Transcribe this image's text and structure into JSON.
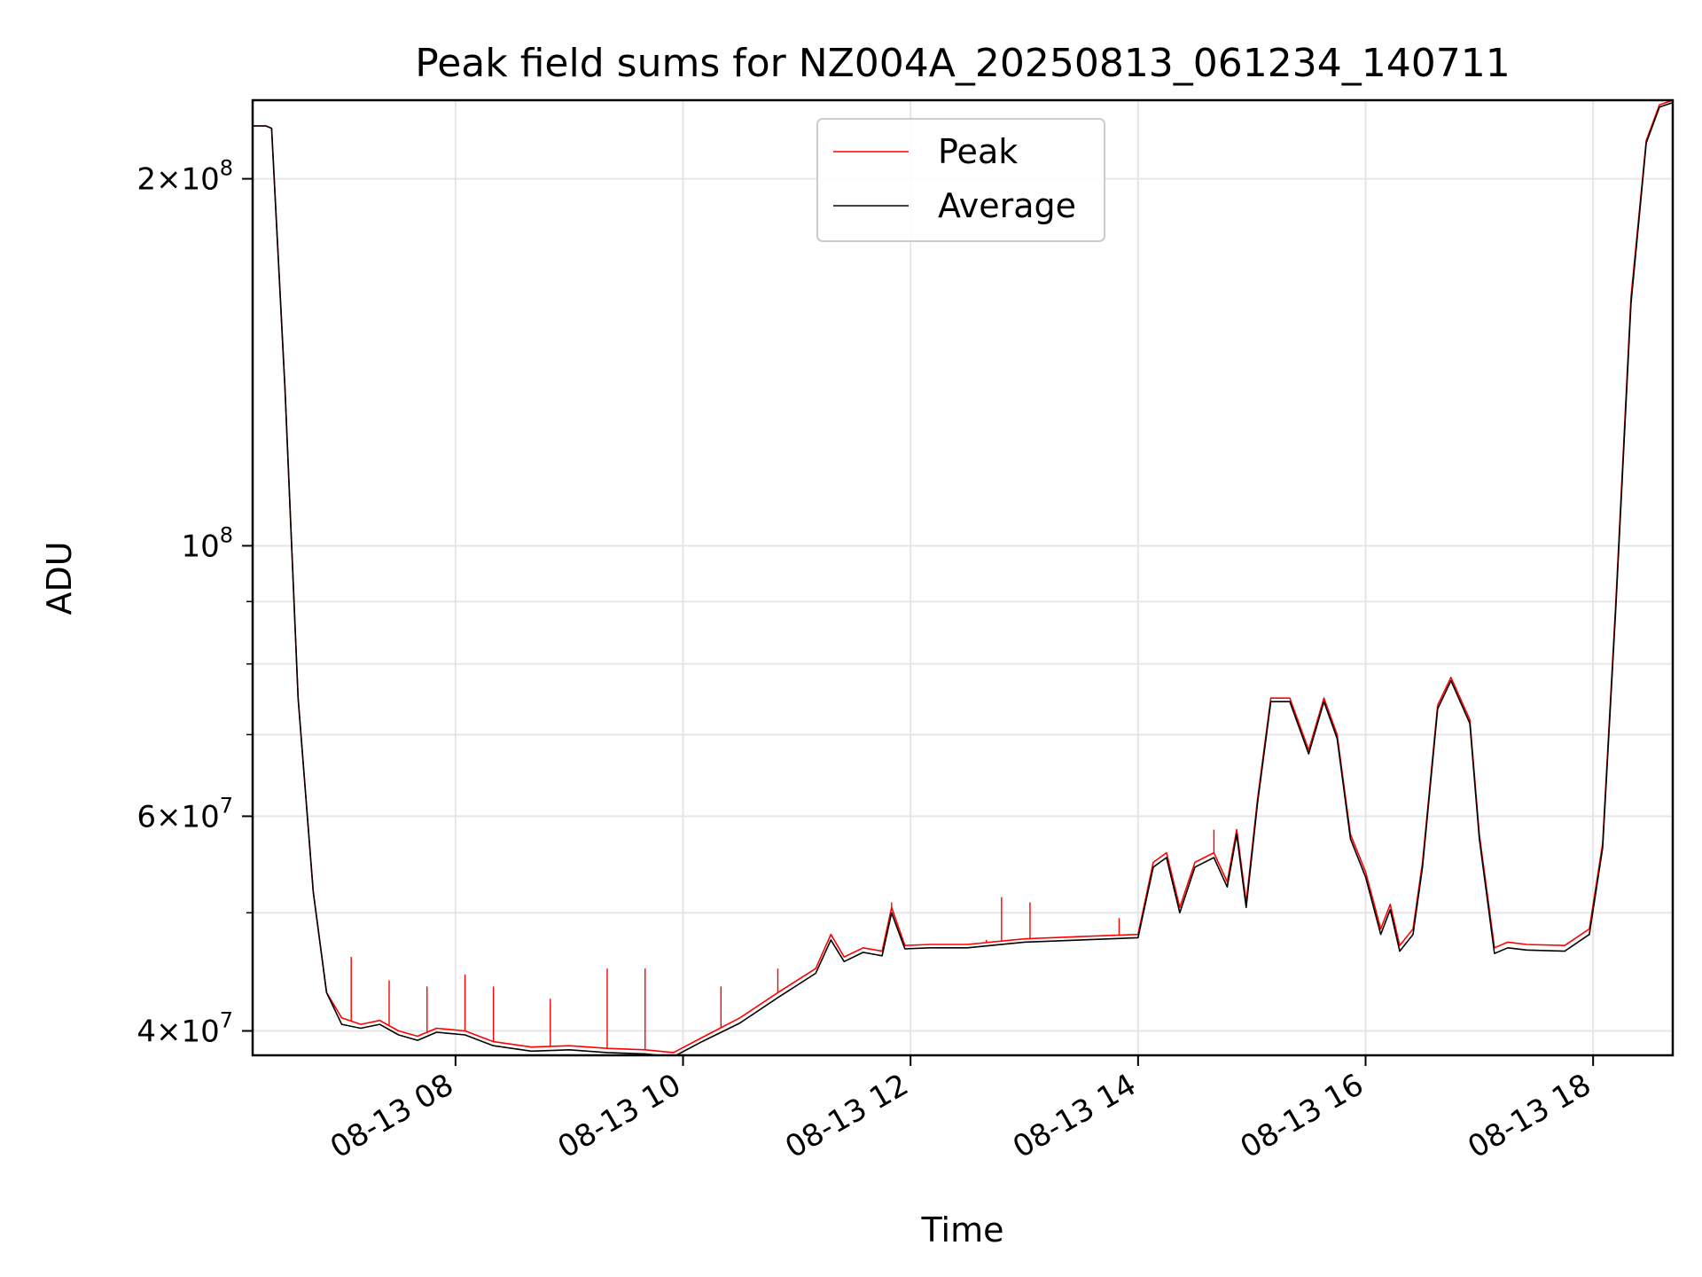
{
  "chart_data": {
    "type": "line",
    "title": "Peak field sums for NZ004A_20250813_061234_140711",
    "xlabel": "Time",
    "ylabel": "ADU",
    "xlim": [
      "2025-08-13 06:13",
      "2025-08-13 18:42"
    ],
    "ylim": [
      38200000,
      232000000
    ],
    "yscale": "log",
    "grid": true,
    "legend": "top-center",
    "x_ticks": [
      {
        "value": "2025-08-13 08:00",
        "label": "08-13 08"
      },
      {
        "value": "2025-08-13 10:00",
        "label": "08-13 10"
      },
      {
        "value": "2025-08-13 12:00",
        "label": "08-13 12"
      },
      {
        "value": "2025-08-13 14:00",
        "label": "08-13 14"
      },
      {
        "value": "2025-08-13 16:00",
        "label": "08-13 16"
      },
      {
        "value": "2025-08-13 18:00",
        "label": "08-13 18"
      }
    ],
    "y_ticks": [
      {
        "value": 40000000,
        "mant": "4",
        "exp": "7"
      },
      {
        "value": 60000000,
        "mant": "6",
        "exp": "7"
      },
      {
        "value": 100000000,
        "mant": "",
        "exp": "8"
      },
      {
        "value": 200000000,
        "mant": "2",
        "exp": "8"
      }
    ],
    "y_minor_ticks": [
      50000000,
      70000000,
      80000000,
      90000000
    ],
    "series": [
      {
        "name": "Peak",
        "color": "#ff0000",
        "x": [
          "2025-08-13 06:13",
          "2025-08-13 06:20",
          "2025-08-13 06:23",
          "2025-08-13 06:30",
          "2025-08-13 06:37",
          "2025-08-13 06:45",
          "2025-08-13 06:52",
          "2025-08-13 07:00",
          "2025-08-13 07:10",
          "2025-08-13 07:20",
          "2025-08-13 07:30",
          "2025-08-13 07:40",
          "2025-08-13 07:50",
          "2025-08-13 08:05",
          "2025-08-13 08:20",
          "2025-08-13 08:40",
          "2025-08-13 09:00",
          "2025-08-13 09:20",
          "2025-08-13 09:40",
          "2025-08-13 09:55",
          "2025-08-13 10:10",
          "2025-08-13 10:30",
          "2025-08-13 10:50",
          "2025-08-13 11:10",
          "2025-08-13 11:18",
          "2025-08-13 11:25",
          "2025-08-13 11:35",
          "2025-08-13 11:45",
          "2025-08-13 11:50",
          "2025-08-13 11:57",
          "2025-08-13 12:10",
          "2025-08-13 12:30",
          "2025-08-13 13:00",
          "2025-08-13 13:30",
          "2025-08-13 14:00",
          "2025-08-13 14:08",
          "2025-08-13 14:15",
          "2025-08-13 14:22",
          "2025-08-13 14:30",
          "2025-08-13 14:40",
          "2025-08-13 14:47",
          "2025-08-13 14:52",
          "2025-08-13 14:57",
          "2025-08-13 15:03",
          "2025-08-13 15:10",
          "2025-08-13 15:20",
          "2025-08-13 15:30",
          "2025-08-13 15:38",
          "2025-08-13 15:45",
          "2025-08-13 15:52",
          "2025-08-13 16:00",
          "2025-08-13 16:08",
          "2025-08-13 16:13",
          "2025-08-13 16:18",
          "2025-08-13 16:25",
          "2025-08-13 16:30",
          "2025-08-13 16:38",
          "2025-08-13 16:45",
          "2025-08-13 16:55",
          "2025-08-13 17:00",
          "2025-08-13 17:08",
          "2025-08-13 17:15",
          "2025-08-13 17:25",
          "2025-08-13 17:45",
          "2025-08-13 17:58",
          "2025-08-13 18:05",
          "2025-08-13 18:12",
          "2025-08-13 18:20",
          "2025-08-13 18:28",
          "2025-08-13 18:35",
          "2025-08-13 18:42"
        ],
        "y": [
          221000000,
          221000000,
          220000000,
          135000000,
          75000000,
          52000000,
          43000000,
          41000000,
          40500000,
          40800000,
          40000000,
          39600000,
          40200000,
          40000000,
          39200000,
          38800000,
          38900000,
          38700000,
          38600000,
          38400000,
          39500000,
          41000000,
          43000000,
          45000000,
          48000000,
          46000000,
          46800000,
          46500000,
          50500000,
          47000000,
          47100000,
          47100000,
          47600000,
          47800000,
          48000000,
          55000000,
          56000000,
          50500000,
          55000000,
          56000000,
          53000000,
          58500000,
          51000000,
          62000000,
          75000000,
          75000000,
          68000000,
          75000000,
          70000000,
          58000000,
          54000000,
          48500000,
          50800000,
          47000000,
          48500000,
          55000000,
          74000000,
          78000000,
          72000000,
          58000000,
          46800000,
          47300000,
          47100000,
          47000000,
          48500000,
          57000000,
          90000000,
          160000000,
          215000000,
          230000000,
          232000000
        ],
        "spikes": [
          {
            "x": "2025-08-13 07:05",
            "y": 46000000
          },
          {
            "x": "2025-08-13 07:25",
            "y": 44000000
          },
          {
            "x": "2025-08-13 07:45",
            "y": 43500000
          },
          {
            "x": "2025-08-13 08:05",
            "y": 44500000
          },
          {
            "x": "2025-08-13 08:20",
            "y": 43500000
          },
          {
            "x": "2025-08-13 08:50",
            "y": 42500000
          },
          {
            "x": "2025-08-13 09:20",
            "y": 45000000
          },
          {
            "x": "2025-08-13 09:40",
            "y": 45000000
          },
          {
            "x": "2025-08-13 10:20",
            "y": 43500000
          },
          {
            "x": "2025-08-13 10:50",
            "y": 45000000
          },
          {
            "x": "2025-08-13 11:50",
            "y": 51000000
          },
          {
            "x": "2025-08-13 12:40",
            "y": 47500000
          },
          {
            "x": "2025-08-13 12:48",
            "y": 51500000
          },
          {
            "x": "2025-08-13 13:03",
            "y": 51000000
          },
          {
            "x": "2025-08-13 13:50",
            "y": 49500000
          },
          {
            "x": "2025-08-13 14:40",
            "y": 58500000
          }
        ]
      },
      {
        "name": "Average",
        "color": "#000000",
        "x": [
          "2025-08-13 06:13",
          "2025-08-13 06:20",
          "2025-08-13 06:23",
          "2025-08-13 06:30",
          "2025-08-13 06:37",
          "2025-08-13 06:45",
          "2025-08-13 06:52",
          "2025-08-13 07:00",
          "2025-08-13 07:10",
          "2025-08-13 07:20",
          "2025-08-13 07:30",
          "2025-08-13 07:40",
          "2025-08-13 07:50",
          "2025-08-13 08:05",
          "2025-08-13 08:20",
          "2025-08-13 08:40",
          "2025-08-13 09:00",
          "2025-08-13 09:20",
          "2025-08-13 09:40",
          "2025-08-13 09:55",
          "2025-08-13 10:10",
          "2025-08-13 10:30",
          "2025-08-13 10:50",
          "2025-08-13 11:10",
          "2025-08-13 11:18",
          "2025-08-13 11:25",
          "2025-08-13 11:35",
          "2025-08-13 11:45",
          "2025-08-13 11:50",
          "2025-08-13 11:57",
          "2025-08-13 12:10",
          "2025-08-13 12:30",
          "2025-08-13 13:00",
          "2025-08-13 13:30",
          "2025-08-13 14:00",
          "2025-08-13 14:08",
          "2025-08-13 14:15",
          "2025-08-13 14:22",
          "2025-08-13 14:30",
          "2025-08-13 14:40",
          "2025-08-13 14:47",
          "2025-08-13 14:52",
          "2025-08-13 14:57",
          "2025-08-13 15:03",
          "2025-08-13 15:10",
          "2025-08-13 15:20",
          "2025-08-13 15:30",
          "2025-08-13 15:38",
          "2025-08-13 15:45",
          "2025-08-13 15:52",
          "2025-08-13 16:00",
          "2025-08-13 16:08",
          "2025-08-13 16:13",
          "2025-08-13 16:18",
          "2025-08-13 16:25",
          "2025-08-13 16:30",
          "2025-08-13 16:38",
          "2025-08-13 16:45",
          "2025-08-13 16:55",
          "2025-08-13 17:00",
          "2025-08-13 17:08",
          "2025-08-13 17:15",
          "2025-08-13 17:25",
          "2025-08-13 17:45",
          "2025-08-13 17:58",
          "2025-08-13 18:05",
          "2025-08-13 18:12",
          "2025-08-13 18:20",
          "2025-08-13 18:28",
          "2025-08-13 18:35",
          "2025-08-13 18:42"
        ],
        "y": [
          221000000,
          221000000,
          220000000,
          135000000,
          75000000,
          52000000,
          43000000,
          40500000,
          40200000,
          40500000,
          39700000,
          39300000,
          39900000,
          39700000,
          38900000,
          38500000,
          38600000,
          38400000,
          38300000,
          38100000,
          39200000,
          40600000,
          42600000,
          44600000,
          47500000,
          45600000,
          46400000,
          46100000,
          50000000,
          46700000,
          46800000,
          46800000,
          47300000,
          47500000,
          47700000,
          54500000,
          55500000,
          50000000,
          54500000,
          55500000,
          52500000,
          58000000,
          50500000,
          61500000,
          74500000,
          74500000,
          67500000,
          74500000,
          69500000,
          57500000,
          53500000,
          48000000,
          50300000,
          46500000,
          48000000,
          54500000,
          73500000,
          77500000,
          71500000,
          57500000,
          46300000,
          46800000,
          46600000,
          46500000,
          48000000,
          56500000,
          89000000,
          158000000,
          214000000,
          229000000,
          231000000
        ]
      }
    ]
  }
}
